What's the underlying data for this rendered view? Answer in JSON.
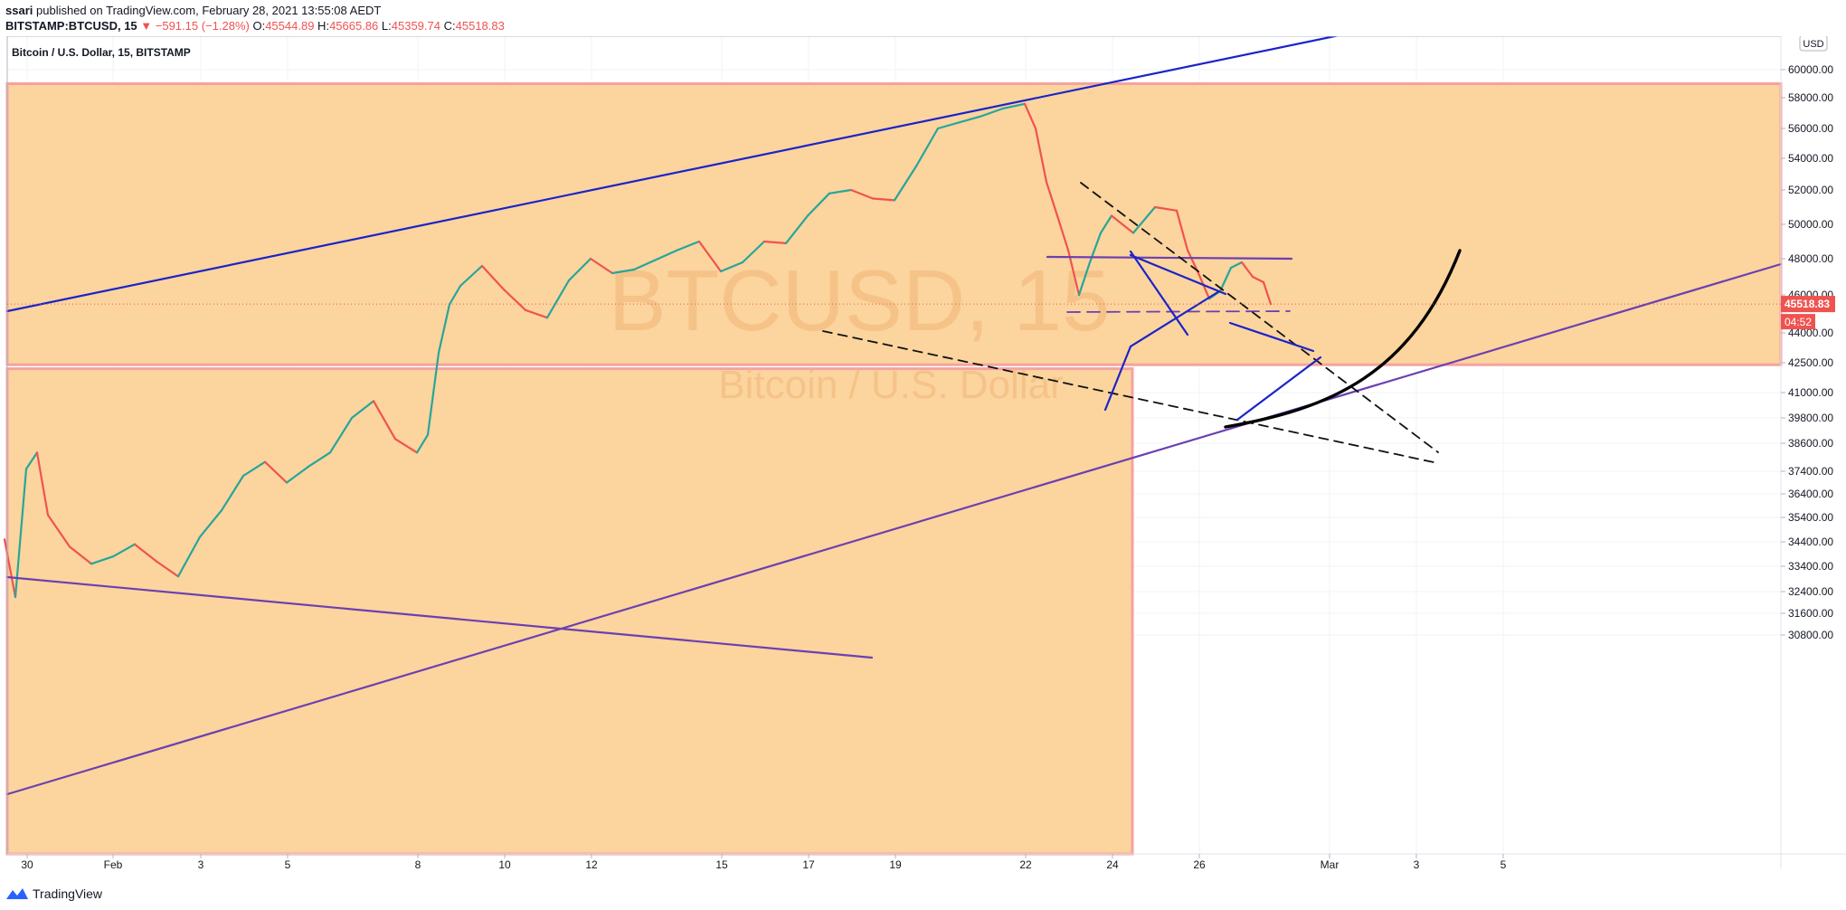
{
  "header": {
    "author": "ssari",
    "published_text": "published on TradingView.com, February 28, 2021 13:55:08 AEDT",
    "symbol": "BITSTAMP:BTCUSD, 15",
    "change": "▼ −591.15 (−1.28%)",
    "ohlc": [
      {
        "k": "O:",
        "v": "45544.89"
      },
      {
        "k": "H:",
        "v": "45665.86"
      },
      {
        "k": "L:",
        "v": "45359.74"
      },
      {
        "k": "C:",
        "v": "45518.83"
      }
    ]
  },
  "footer": {
    "brand": "TradingView",
    "logo_icon": "tradingview-logo-icon"
  },
  "chart_data": {
    "type": "line",
    "title": "Bitcoin / U.S. Dollar, 15, BITSTAMP",
    "watermark_symbol": "BTCUSD, 15",
    "watermark_name": "Bitcoin / U.S. Dollar",
    "currency_label": "USD",
    "last_price": "45518.83",
    "countdown": "04:52",
    "y_ticks": [
      {
        "v": 60000,
        "label": "60000.00"
      },
      {
        "v": 58000,
        "label": "58000.00"
      },
      {
        "v": 56000,
        "label": "56000.00"
      },
      {
        "v": 54000,
        "label": "54000.00"
      },
      {
        "v": 52000,
        "label": "52000.00"
      },
      {
        "v": 50000,
        "label": "50000.00"
      },
      {
        "v": 48000,
        "label": "48000.00"
      },
      {
        "v": 46000,
        "label": "46000.00"
      },
      {
        "v": 44000,
        "label": "44000.00"
      },
      {
        "v": 42500,
        "label": "42500.00"
      },
      {
        "v": 41000,
        "label": "41000.00"
      },
      {
        "v": 39800,
        "label": "39800.00"
      },
      {
        "v": 38600,
        "label": "38600.00"
      },
      {
        "v": 37400,
        "label": "37400.00"
      },
      {
        "v": 36400,
        "label": "36400.00"
      },
      {
        "v": 35400,
        "label": "35400.00"
      },
      {
        "v": 34400,
        "label": "34400.00"
      },
      {
        "v": 33400,
        "label": "33400.00"
      },
      {
        "v": 32400,
        "label": "32400.00"
      },
      {
        "v": 31600,
        "label": "31600.00"
      },
      {
        "v": 30800,
        "label": "30800.00"
      }
    ],
    "x_ticks": [
      "30",
      "Feb",
      "3",
      "5",
      "8",
      "10",
      "12",
      "15",
      "17",
      "19",
      "22",
      "24",
      "26",
      "Mar",
      "3",
      "5"
    ],
    "price_path": [
      [
        "Jan 29 12:00",
        34500
      ],
      [
        "Jan 29 18:00",
        32200
      ],
      [
        "Jan 30 00:00",
        37500
      ],
      [
        "Jan 30 06:00",
        38200
      ],
      [
        "Jan 30 12:00",
        35500
      ],
      [
        "Jan 31 00:00",
        34200
      ],
      [
        "Jan 31 12:00",
        33500
      ],
      [
        "Feb 01 00:00",
        33800
      ],
      [
        "Feb 01 12:00",
        34300
      ],
      [
        "Feb 02 00:00",
        33600
      ],
      [
        "Feb 02 12:00",
        33000
      ],
      [
        "Feb 03 00:00",
        34600
      ],
      [
        "Feb 03 12:00",
        35700
      ],
      [
        "Feb 04 00:00",
        37200
      ],
      [
        "Feb 04 12:00",
        37800
      ],
      [
        "Feb 05 00:00",
        36900
      ],
      [
        "Feb 05 12:00",
        37600
      ],
      [
        "Feb 06 00:00",
        38200
      ],
      [
        "Feb 06 12:00",
        39800
      ],
      [
        "Feb 07 00:00",
        40600
      ],
      [
        "Feb 07 12:00",
        38800
      ],
      [
        "Feb 08 00:00",
        38200
      ],
      [
        "Feb 08 06:00",
        39000
      ],
      [
        "Feb 08 12:00",
        43000
      ],
      [
        "Feb 08 18:00",
        45500
      ],
      [
        "Feb 09 00:00",
        46500
      ],
      [
        "Feb 09 12:00",
        47600
      ],
      [
        "Feb 10 00:00",
        46300
      ],
      [
        "Feb 10 12:00",
        45200
      ],
      [
        "Feb 11 00:00",
        44800
      ],
      [
        "Feb 11 12:00",
        46800
      ],
      [
        "Feb 12 00:00",
        48000
      ],
      [
        "Feb 12 12:00",
        47200
      ],
      [
        "Feb 13 00:00",
        47400
      ],
      [
        "Feb 14 00:00",
        48500
      ],
      [
        "Feb 14 12:00",
        49000
      ],
      [
        "Feb 15 00:00",
        47300
      ],
      [
        "Feb 15 12:00",
        47800
      ],
      [
        "Feb 16 00:00",
        49000
      ],
      [
        "Feb 16 12:00",
        48900
      ],
      [
        "Feb 17 00:00",
        50500
      ],
      [
        "Feb 17 12:00",
        51800
      ],
      [
        "Feb 18 00:00",
        52000
      ],
      [
        "Feb 18 12:00",
        51500
      ],
      [
        "Feb 19 00:00",
        51400
      ],
      [
        "Feb 19 12:00",
        53500
      ],
      [
        "Feb 20 00:00",
        56000
      ],
      [
        "Feb 20 12:00",
        56400
      ],
      [
        "Feb 21 00:00",
        56800
      ],
      [
        "Feb 21 12:00",
        57300
      ],
      [
        "Feb 22 00:00",
        57600
      ],
      [
        "Feb 22 06:00",
        56000
      ],
      [
        "Feb 22 12:00",
        52500
      ],
      [
        "Feb 22 18:00",
        50500
      ],
      [
        "Feb 23 00:00",
        48500
      ],
      [
        "Feb 23 06:00",
        46000
      ],
      [
        "Feb 23 12:00",
        47800
      ],
      [
        "Feb 23 18:00",
        49500
      ],
      [
        "Feb 24 00:00",
        50500
      ],
      [
        "Feb 24 12:00",
        49500
      ],
      [
        "Feb 25 00:00",
        51000
      ],
      [
        "Feb 25 12:00",
        50800
      ],
      [
        "Feb 25 18:00",
        48500
      ],
      [
        "Feb 26 00:00",
        47200
      ],
      [
        "Feb 26 06:00",
        45800
      ],
      [
        "Feb 26 12:00",
        46200
      ],
      [
        "Feb 26 18:00",
        47500
      ],
      [
        "Feb 27 00:00",
        47800
      ],
      [
        "Feb 27 06:00",
        47000
      ],
      [
        "Feb 27 12:00",
        46700
      ],
      [
        "Feb 27 16:00",
        45519
      ]
    ]
  }
}
